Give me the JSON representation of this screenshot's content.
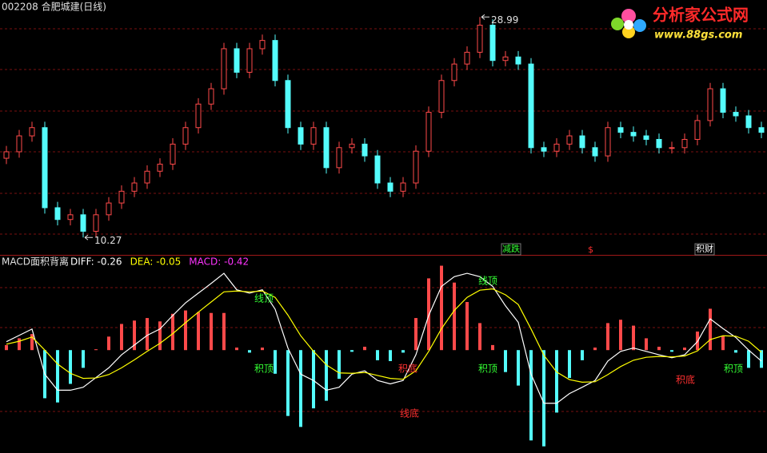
{
  "watermark": {
    "brand": "分析家公式网",
    "url": "www.88gs.com"
  },
  "chart_data": [
    {
      "type": "candlestick",
      "title": "002208 合肥城建(日线)",
      "open": [
        17.0,
        17.55,
        18.9,
        19.6,
        12.8,
        11.8,
        12.2,
        10.8,
        12.2,
        13.2,
        14.2,
        14.9,
        15.9,
        16.5,
        18.2,
        19.6,
        21.6,
        22.9,
        26.3,
        24.3,
        26.3,
        27.0,
        23.6,
        19.6,
        18.2,
        19.6,
        16.2,
        17.9,
        18.2,
        17.2,
        14.9,
        14.2,
        14.9,
        17.6,
        20.9,
        23.6,
        25.0,
        26.0,
        28.3,
        25.3,
        25.6,
        25.0,
        17.9,
        17.6,
        18.2,
        18.9,
        17.9,
        17.2,
        19.6,
        19.2,
        18.9,
        18.6,
        17.9,
        17.9,
        18.6,
        20.2,
        22.9,
        20.9,
        20.6,
        19.6
      ],
      "high": [
        18.05,
        19.4,
        20.1,
        20.1,
        13.3,
        12.7,
        12.7,
        12.7,
        13.7,
        14.7,
        15.4,
        16.4,
        17.0,
        18.7,
        20.1,
        22.1,
        23.4,
        26.8,
        26.8,
        26.8,
        27.5,
        27.5,
        24.1,
        20.1,
        20.1,
        20.1,
        18.4,
        18.7,
        18.7,
        17.7,
        15.4,
        15.4,
        18.1,
        21.4,
        24.1,
        25.5,
        26.5,
        28.99,
        28.8,
        26.1,
        26.1,
        25.5,
        18.4,
        18.7,
        19.4,
        19.4,
        18.4,
        20.1,
        20.1,
        19.7,
        19.4,
        19.1,
        18.4,
        19.1,
        20.7,
        23.4,
        23.4,
        21.4,
        21.1,
        20.1
      ],
      "low": [
        16.5,
        17.05,
        18.4,
        12.3,
        11.3,
        11.3,
        10.27,
        10.3,
        11.7,
        12.7,
        13.7,
        14.4,
        15.4,
        16.0,
        17.7,
        19.1,
        21.1,
        22.4,
        23.8,
        23.8,
        25.8,
        23.1,
        19.1,
        17.7,
        17.7,
        15.7,
        15.7,
        17.4,
        16.7,
        14.4,
        13.7,
        13.7,
        14.4,
        17.1,
        20.4,
        23.1,
        24.5,
        25.5,
        24.8,
        24.8,
        24.5,
        17.4,
        17.1,
        17.1,
        17.7,
        17.4,
        16.7,
        16.7,
        18.7,
        18.4,
        18.1,
        17.4,
        17.4,
        17.4,
        18.1,
        19.7,
        20.4,
        20.1,
        19.1,
        18.7
      ],
      "close": [
        17.55,
        18.9,
        19.6,
        12.8,
        11.8,
        12.2,
        10.8,
        12.2,
        13.2,
        14.2,
        14.9,
        15.9,
        16.5,
        18.2,
        19.6,
        21.6,
        22.9,
        26.3,
        24.3,
        26.3,
        27.0,
        23.6,
        19.6,
        18.2,
        19.6,
        16.2,
        17.9,
        18.2,
        17.2,
        14.9,
        14.2,
        14.9,
        17.6,
        20.9,
        23.6,
        25.0,
        26.0,
        28.3,
        25.3,
        25.6,
        25.0,
        17.9,
        17.6,
        18.2,
        18.9,
        17.9,
        17.2,
        19.6,
        19.2,
        18.9,
        18.6,
        17.9,
        17.9,
        18.6,
        20.2,
        22.9,
        20.9,
        20.6,
        19.6,
        19.2
      ],
      "ylim": [
        9,
        30.3
      ],
      "up_color": "#ff4a4a",
      "down_color": "#54fcfc",
      "annotations": [
        {
          "text": "减跌",
          "color": "#33ff33"
        },
        {
          "text": "$",
          "color": "#ff3030"
        },
        {
          "text": "积财",
          "color": "#ffffff"
        }
      ]
    },
    {
      "type": "macd",
      "title": "MACD面积背离",
      "series": [
        {
          "name": "DIFF: -0.26",
          "color": "#ffffff",
          "values": [
            0.2,
            0.35,
            0.5,
            -0.57,
            -0.95,
            -0.95,
            -0.88,
            -0.65,
            -0.42,
            -0.11,
            0.12,
            0.35,
            0.5,
            0.82,
            1.12,
            1.35,
            1.58,
            1.82,
            1.43,
            1.35,
            1.43,
            0.97,
            0.05,
            -0.57,
            -0.72,
            -0.95,
            -0.88,
            -0.57,
            -0.49,
            -0.72,
            -0.8,
            -0.72,
            -0.11,
            0.82,
            1.51,
            1.74,
            1.82,
            1.74,
            1.51,
            1.05,
            0.66,
            -0.57,
            -1.26,
            -1.26,
            -1.03,
            -0.88,
            -0.72,
            -0.26,
            -0.03,
            0.05,
            -0.03,
            -0.11,
            -0.18,
            -0.11,
            0.2,
            0.74,
            0.51,
            0.3,
            0.0,
            -0.26
          ]
        },
        {
          "name": "DEA: -0.05",
          "color": "#ffff00",
          "values": [
            0.14,
            0.21,
            0.31,
            0.0,
            -0.33,
            -0.55,
            -0.67,
            -0.66,
            -0.58,
            -0.42,
            -0.23,
            -0.03,
            0.16,
            0.39,
            0.65,
            0.9,
            1.14,
            1.38,
            1.4,
            1.38,
            1.4,
            1.25,
            0.83,
            0.34,
            -0.03,
            -0.35,
            -0.54,
            -0.55,
            -0.53,
            -0.6,
            -0.67,
            -0.69,
            -0.49,
            -0.03,
            0.51,
            0.94,
            1.25,
            1.42,
            1.45,
            1.31,
            1.08,
            0.5,
            -0.12,
            -0.52,
            -0.7,
            -0.76,
            -0.75,
            -0.58,
            -0.39,
            -0.24,
            -0.17,
            -0.15,
            -0.16,
            -0.14,
            -0.02,
            0.25,
            0.34,
            0.33,
            0.21,
            -0.05
          ]
        },
        {
          "name": "MACD: -0.42",
          "color": "#ff33ff",
          "values": [
            0.12,
            0.28,
            0.38,
            -1.14,
            -1.24,
            -0.8,
            -0.42,
            0.02,
            0.32,
            0.62,
            0.7,
            0.76,
            0.68,
            0.86,
            0.94,
            0.9,
            0.88,
            0.88,
            0.06,
            -0.06,
            0.06,
            -0.56,
            -1.56,
            -1.82,
            -1.38,
            -1.2,
            -0.68,
            -0.04,
            0.08,
            -0.24,
            -0.26,
            -0.06,
            0.76,
            1.7,
            2.0,
            1.6,
            1.14,
            0.64,
            0.12,
            -0.52,
            -0.84,
            -2.14,
            -2.28,
            -1.48,
            -0.66,
            -0.24,
            0.06,
            0.64,
            0.72,
            0.58,
            0.28,
            0.08,
            -0.04,
            0.06,
            0.44,
            0.98,
            0.34,
            -0.06,
            -0.42,
            -0.42
          ]
        }
      ],
      "ylim": [
        -2.4,
        2.2
      ],
      "up_color": "#ff4a4a",
      "down_color": "#54fcfc",
      "annotations": [
        {
          "text": "线顶",
          "color": "#33ff33"
        },
        {
          "text": "积顶",
          "color": "#33ff33"
        },
        {
          "text": "积底",
          "color": "#ff3030"
        },
        {
          "text": "线底",
          "color": "#ff3030"
        },
        {
          "text": "线顶",
          "color": "#33ff33"
        },
        {
          "text": "积顶",
          "color": "#33ff33"
        },
        {
          "text": "积底",
          "color": "#ff3030"
        },
        {
          "text": "积顶",
          "color": "#33ff33"
        }
      ]
    }
  ]
}
